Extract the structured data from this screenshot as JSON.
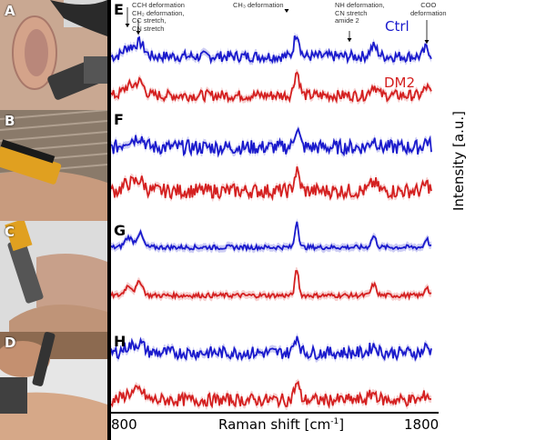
{
  "photos": [
    {
      "label": "A"
    },
    {
      "label": "B"
    },
    {
      "label": "C"
    },
    {
      "label": "D"
    }
  ],
  "panels": [
    "E",
    "F",
    "G",
    "H"
  ],
  "legend": {
    "ctrl": "Ctrl",
    "dm2": "DM2",
    "ctrl_color": "#1a1acc",
    "dm2_color": "#d42020"
  },
  "annotations": {
    "cch": "CCH deformation",
    "ch2": "CH₂ deformation,",
    "cc": "CC stretch,",
    "cn": "CN stretch",
    "ch3": "CH₃ deformation",
    "nh1": "NH deformation,",
    "nh2": "CN stretch",
    "nh3": "amide 2",
    "coo1": "COO",
    "coo2": "deformation"
  },
  "axis": {
    "ylabel": "Intensity  [a.u.]",
    "xlabel": "Raman shift [cm",
    "xlabel_sup": "-1",
    "xlabel_end": "]",
    "xmin": "800",
    "xmax": "1800"
  },
  "chart_data": {
    "type": "line",
    "x_range": [
      800,
      1800
    ],
    "xlabel": "Raman shift [cm-1]",
    "ylabel": "Intensity [a.u.]",
    "series": [
      {
        "name": "Ctrl",
        "color": "#1a1acc"
      },
      {
        "name": "DM2",
        "color": "#d42020"
      }
    ],
    "annotated_bands": [
      "CCH deformation",
      "CH₂ deformation, CC stretch, CN stretch",
      "CH₃ deformation",
      "NH deformation, CN stretch amide 2",
      "COO deformation"
    ]
  }
}
